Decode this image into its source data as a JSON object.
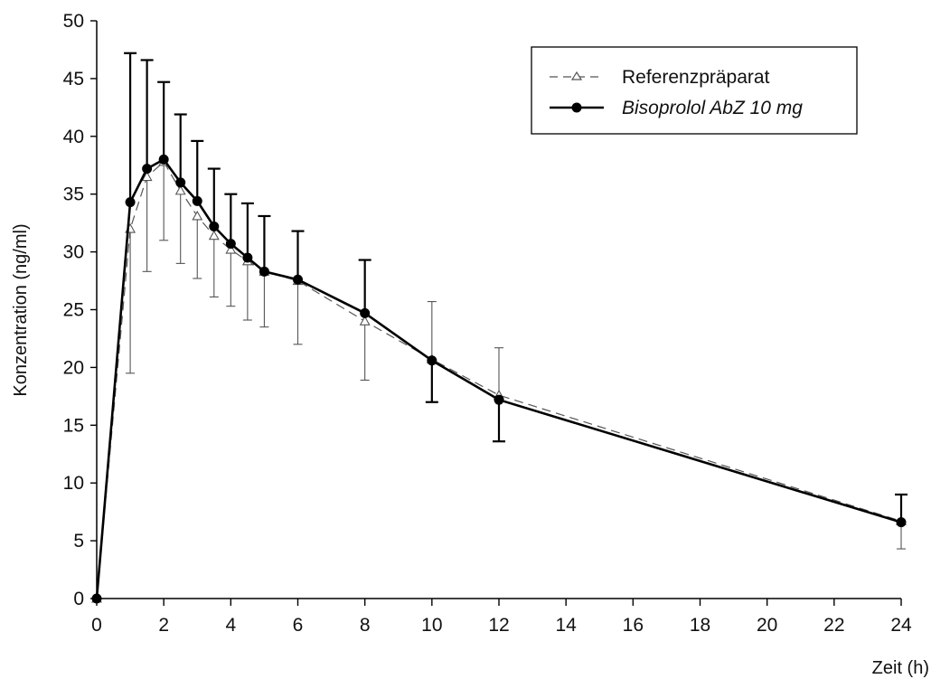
{
  "chart_data": {
    "type": "line",
    "title": "",
    "xlabel": "Zeit (h)",
    "ylabel": "Konzentration (ng/ml)",
    "xlim": [
      0,
      24
    ],
    "ylim": [
      0,
      50
    ],
    "xticks": [
      0,
      2,
      4,
      6,
      8,
      10,
      12,
      14,
      16,
      18,
      20,
      22,
      24
    ],
    "yticks": [
      0,
      5,
      10,
      15,
      20,
      25,
      30,
      35,
      40,
      45,
      50
    ],
    "grid": false,
    "legend_position": "top-right",
    "series": [
      {
        "name": "Referenzpräparat",
        "style": "dashed",
        "marker": "open-triangle",
        "color": "#555555",
        "x": [
          0,
          1,
          1.5,
          2,
          2.5,
          3,
          3.5,
          4,
          4.5,
          5,
          6,
          8,
          10,
          12,
          24
        ],
        "y": [
          0,
          32.0,
          36.5,
          37.8,
          35.3,
          33.1,
          31.4,
          30.2,
          29.2,
          28.3,
          27.5,
          24.0,
          20.7,
          17.6,
          6.7
        ],
        "err_low": [
          0,
          19.5,
          28.3,
          31.0,
          29.0,
          27.7,
          26.1,
          25.3,
          24.1,
          23.5,
          22.0,
          18.9,
          20.7,
          17.6,
          4.3
        ],
        "err_high": [
          0,
          32.0,
          36.5,
          37.8,
          35.3,
          33.1,
          31.4,
          30.2,
          29.2,
          28.3,
          27.5,
          24.0,
          25.7,
          21.7,
          6.7
        ]
      },
      {
        "name": "Bisoprolol AbZ 10 mg",
        "style": "solid",
        "marker": "filled-circle",
        "color": "#000000",
        "x": [
          0,
          1,
          1.5,
          2,
          2.5,
          3,
          3.5,
          4,
          4.5,
          5,
          6,
          8,
          10,
          12,
          24
        ],
        "y": [
          0,
          34.3,
          37.2,
          38.0,
          36.0,
          34.4,
          32.2,
          30.7,
          29.5,
          28.3,
          27.6,
          24.7,
          20.6,
          17.2,
          6.6
        ],
        "err_low": [
          0,
          34.3,
          37.2,
          38.0,
          36.0,
          34.4,
          32.2,
          30.7,
          29.5,
          28.3,
          27.6,
          24.7,
          17.0,
          13.6,
          6.6
        ],
        "err_high": [
          0,
          47.2,
          46.6,
          44.7,
          41.9,
          39.6,
          37.2,
          35.0,
          34.2,
          33.1,
          31.8,
          29.3,
          20.6,
          17.2,
          9.0
        ]
      }
    ]
  }
}
